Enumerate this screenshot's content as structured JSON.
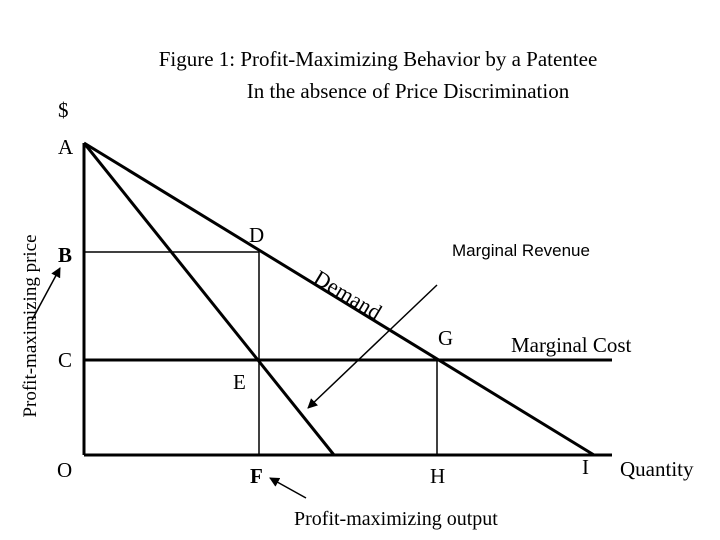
{
  "title": {
    "line1": "Figure 1:  Profit-Maximizing Behavior by a Patentee",
    "line2": "In the absence of Price Discrimination"
  },
  "axes": {
    "y_unit": "$",
    "x_label": "Quantity",
    "y_side_label": "Profit-maximizing price",
    "bottom_label": "Profit-maximizing output"
  },
  "points": {
    "A": "A",
    "B": "B",
    "C": "C",
    "D": "D",
    "E": "E",
    "F": "F",
    "G": "G",
    "H": "H",
    "I": "I",
    "O": "O"
  },
  "curves": {
    "demand": "Demand",
    "marginal_revenue": "Marginal Revenue",
    "marginal_cost": "Marginal Cost"
  }
}
